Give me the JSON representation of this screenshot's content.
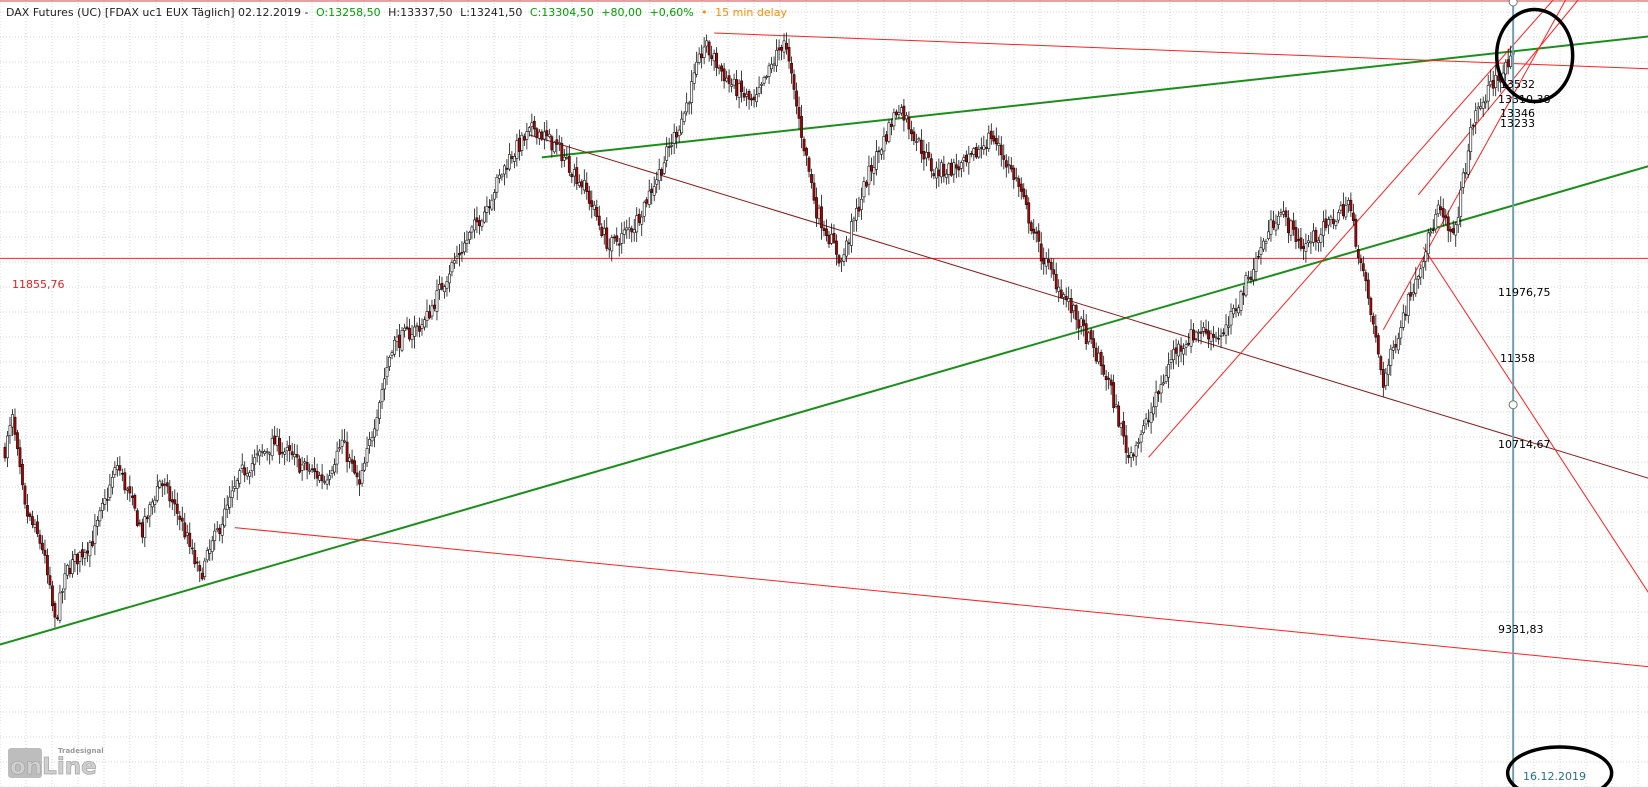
{
  "header": {
    "instrument": "DAX Futures (UC) [FDAX uc1 EUX Täglich] 02.12.2019 -",
    "open": "O:13258,50",
    "high": "H:13337,50",
    "low": "L:13241,50",
    "close": "C:13304,50",
    "change": "+80,00",
    "change_pct": "+0,60%",
    "bullet": "•",
    "delay": "15 min delay"
  },
  "colors": {
    "up": "#00a000",
    "delay": "#ff8c00",
    "support": "#ff2020",
    "trend_green": "#1a8f1a",
    "trend_dark": "#8b1a1a",
    "grid": "#d6d6d6",
    "candle_up": "#ffffff",
    "candle_down": "#b00000",
    "vline": "#6f9fae"
  },
  "levels": {
    "left_label": "11855,76",
    "right_labels": [
      {
        "text": "13532",
        "color": "#e02020"
      },
      {
        "text": "13310,38",
        "color": "#e02020"
      },
      {
        "text": "13346",
        "color": "#e02020"
      },
      {
        "text": "13233",
        "color": "#e02020"
      },
      {
        "text": "11976,75",
        "color": "#1a7f1a"
      },
      {
        "text": "11358",
        "color": "#e02020"
      },
      {
        "text": "10714,67",
        "color": "#8b1a1a"
      },
      {
        "text": "9331,83",
        "color": "#e02020"
      }
    ]
  },
  "date_label": "16.12.2019",
  "logo": {
    "main": "onLine",
    "sub": "Tradesignal"
  },
  "chart_data": {
    "type": "candlestick",
    "title": "DAX Futures (UC) [FDAX uc1 EUX Täglich]",
    "key_points": [
      {
        "t": 0,
        "v": 10700
      },
      {
        "t": 3,
        "v": 10900
      },
      {
        "t": 8,
        "v": 10300
      },
      {
        "t": 15,
        "v": 10050
      },
      {
        "t": 20,
        "v": 9550
      },
      {
        "t": 25,
        "v": 9900
      },
      {
        "t": 35,
        "v": 10100
      },
      {
        "t": 45,
        "v": 10600
      },
      {
        "t": 55,
        "v": 10150
      },
      {
        "t": 62,
        "v": 10500
      },
      {
        "t": 70,
        "v": 10250
      },
      {
        "t": 78,
        "v": 9850
      },
      {
        "t": 85,
        "v": 10150
      },
      {
        "t": 95,
        "v": 10550
      },
      {
        "t": 108,
        "v": 10750
      },
      {
        "t": 118,
        "v": 10600
      },
      {
        "t": 128,
        "v": 10500
      },
      {
        "t": 135,
        "v": 10750
      },
      {
        "t": 142,
        "v": 10450
      },
      {
        "t": 155,
        "v": 11400
      },
      {
        "t": 168,
        "v": 11550
      },
      {
        "t": 178,
        "v": 11900
      },
      {
        "t": 192,
        "v": 12300
      },
      {
        "t": 202,
        "v": 12650
      },
      {
        "t": 212,
        "v": 12850
      },
      {
        "t": 222,
        "v": 12700
      },
      {
        "t": 232,
        "v": 12450
      },
      {
        "t": 242,
        "v": 12050
      },
      {
        "t": 252,
        "v": 12200
      },
      {
        "t": 262,
        "v": 12550
      },
      {
        "t": 272,
        "v": 12950
      },
      {
        "t": 280,
        "v": 13400
      },
      {
        "t": 290,
        "v": 13150
      },
      {
        "t": 300,
        "v": 13000
      },
      {
        "t": 312,
        "v": 13440
      },
      {
        "t": 318,
        "v": 12900
      },
      {
        "t": 325,
        "v": 12300
      },
      {
        "t": 335,
        "v": 11950
      },
      {
        "t": 345,
        "v": 12500
      },
      {
        "t": 358,
        "v": 13000
      },
      {
        "t": 372,
        "v": 12550
      },
      {
        "t": 385,
        "v": 12600
      },
      {
        "t": 395,
        "v": 12800
      },
      {
        "t": 405,
        "v": 12500
      },
      {
        "t": 415,
        "v": 12000
      },
      {
        "t": 425,
        "v": 11700
      },
      {
        "t": 435,
        "v": 11400
      },
      {
        "t": 442,
        "v": 11150
      },
      {
        "t": 450,
        "v": 10650
      },
      {
        "t": 458,
        "v": 10900
      },
      {
        "t": 468,
        "v": 11350
      },
      {
        "t": 478,
        "v": 11500
      },
      {
        "t": 488,
        "v": 11450
      },
      {
        "t": 498,
        "v": 11850
      },
      {
        "t": 510,
        "v": 12300
      },
      {
        "t": 520,
        "v": 12050
      },
      {
        "t": 530,
        "v": 12200
      },
      {
        "t": 538,
        "v": 12350
      },
      {
        "t": 546,
        "v": 11700
      },
      {
        "t": 552,
        "v": 11150
      },
      {
        "t": 560,
        "v": 11600
      },
      {
        "t": 568,
        "v": 12000
      },
      {
        "t": 574,
        "v": 12300
      },
      {
        "t": 580,
        "v": 12100
      },
      {
        "t": 588,
        "v": 12900
      },
      {
        "t": 596,
        "v": 13150
      },
      {
        "t": 604,
        "v": 13300
      }
    ],
    "lines": [
      {
        "name": "horizontal-support",
        "kind": "level",
        "color": "#ff2020",
        "t1": -10,
        "v1": 11976.75,
        "t2": 660,
        "v2": 11976.75
      },
      {
        "name": "green-long-trend",
        "color": "#1a8f1a",
        "width": 2,
        "t1": -2,
        "v1": 9400,
        "t2": 660,
        "v2": 12600
      },
      {
        "name": "green-upper-trend",
        "color": "#1a8f1a",
        "width": 2,
        "t1": 215,
        "v1": 12650,
        "t2": 660,
        "v2": 13460
      },
      {
        "name": "red-upper-resistance",
        "color": "#ff2020",
        "t1": 284,
        "v1": 13480,
        "t2": 660,
        "v2": 13240
      },
      {
        "name": "dark-red-down-trend",
        "color": "#8b1a1a",
        "t1": 210,
        "v1": 12800,
        "t2": 660,
        "v2": 10500
      },
      {
        "name": "red-lower-channel",
        "color": "#ff2020",
        "t1": 92,
        "v1": 10180,
        "t2": 660,
        "v2": 9250
      },
      {
        "name": "red-rising-1",
        "color": "#ff2020",
        "t1": 458,
        "v1": 10650,
        "t2": 620,
        "v2": 13700
      },
      {
        "name": "red-rising-2",
        "color": "#ff2020",
        "t1": 552,
        "v1": 11500,
        "t2": 625,
        "v2": 13700
      },
      {
        "name": "red-rising-3",
        "color": "#ff2020",
        "t1": 566,
        "v1": 12400,
        "t2": 630,
        "v2": 13700
      },
      {
        "name": "red-falling-target",
        "color": "#ff2020",
        "t1": 568,
        "v1": 12050,
        "t2": 660,
        "v2": 9700
      }
    ],
    "vertical_marker": {
      "t": 604,
      "label": "16.12.2019"
    },
    "annotations": [
      {
        "type": "ellipse",
        "t": 603,
        "v": 13330
      },
      {
        "type": "ellipse",
        "t": 607,
        "v": 8450
      }
    ],
    "grid": true,
    "ylim": [
      8450,
      13700
    ],
    "tlim": [
      -2,
      658
    ]
  }
}
